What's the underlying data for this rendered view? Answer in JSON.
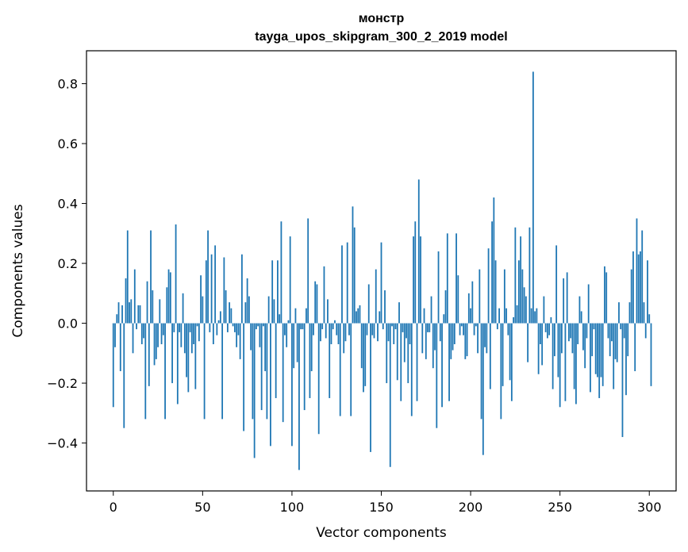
{
  "chart_data": {
    "type": "bar",
    "title": "монстр",
    "subtitle": "tayga_upos_skipgram_300_2_2019 model",
    "xlabel": "Vector components",
    "ylabel": "Components values",
    "xlim": [
      -15,
      315
    ],
    "ylim": [
      -0.56,
      0.91
    ],
    "xticks": [
      0,
      50,
      100,
      150,
      200,
      250,
      300
    ],
    "xtick_labels": [
      "0",
      "50",
      "100",
      "150",
      "200",
      "250",
      "300"
    ],
    "yticks": [
      -0.4,
      -0.2,
      0.0,
      0.2,
      0.4,
      0.6,
      0.8
    ],
    "ytick_labels": [
      "−0.4",
      "−0.2",
      "0.0",
      "0.2",
      "0.4",
      "0.6",
      "0.8"
    ],
    "bar_color": "#1f77b4",
    "grid": false,
    "values": [
      -0.28,
      -0.08,
      0.03,
      0.07,
      -0.16,
      0.06,
      -0.35,
      0.15,
      0.31,
      0.07,
      0.08,
      -0.1,
      0.18,
      -0.02,
      0.06,
      0.06,
      -0.07,
      -0.05,
      -0.32,
      0.14,
      -0.21,
      0.31,
      0.11,
      -0.14,
      -0.12,
      -0.08,
      0.08,
      -0.07,
      -0.04,
      -0.32,
      0.12,
      0.18,
      0.17,
      -0.2,
      -0.03,
      0.33,
      -0.27,
      -0.03,
      -0.08,
      0.1,
      -0.1,
      -0.18,
      -0.23,
      -0.03,
      -0.1,
      -0.07,
      -0.22,
      -0.01,
      -0.06,
      0.16,
      0.09,
      -0.32,
      0.21,
      0.31,
      -0.03,
      0.23,
      -0.07,
      0.26,
      -0.04,
      0.01,
      0.04,
      -0.32,
      0.22,
      0.11,
      -0.03,
      0.07,
      0.05,
      -0.01,
      -0.03,
      -0.08,
      -0.04,
      -0.12,
      0.23,
      -0.36,
      0.07,
      0.15,
      0.09,
      -0.09,
      -0.32,
      -0.45,
      -0.02,
      -0.01,
      -0.08,
      -0.29,
      -0.01,
      -0.16,
      -0.32,
      0.09,
      -0.41,
      0.21,
      0.08,
      -0.25,
      0.21,
      0.03,
      0.34,
      -0.33,
      -0.04,
      -0.08,
      0.01,
      0.29,
      -0.41,
      -0.15,
      0.05,
      -0.13,
      -0.49,
      -0.02,
      -0.02,
      -0.29,
      0.05,
      0.35,
      -0.25,
      -0.16,
      -0.04,
      0.14,
      0.13,
      -0.37,
      -0.06,
      -0.02,
      0.19,
      -0.05,
      0.08,
      -0.25,
      -0.07,
      -0.02,
      0.01,
      -0.04,
      -0.07,
      -0.31,
      0.26,
      -0.1,
      -0.06,
      0.27,
      -0.04,
      -0.31,
      0.39,
      0.32,
      0.04,
      0.05,
      0.06,
      -0.15,
      -0.23,
      -0.21,
      -0.04,
      0.13,
      -0.43,
      -0.04,
      -0.05,
      0.18,
      -0.06,
      0.04,
      0.27,
      -0.02,
      0.11,
      -0.2,
      -0.06,
      -0.48,
      -0.01,
      -0.07,
      -0.02,
      -0.19,
      0.07,
      -0.26,
      -0.03,
      -0.13,
      -0.05,
      -0.2,
      -0.07,
      -0.31,
      0.29,
      0.34,
      -0.26,
      0.48,
      0.29,
      -0.1,
      0.05,
      -0.12,
      -0.03,
      -0.03,
      0.09,
      -0.15,
      -0.09,
      -0.35,
      0.24,
      -0.06,
      -0.28,
      0.03,
      0.11,
      0.3,
      -0.26,
      -0.12,
      -0.09,
      -0.07,
      0.3,
      0.16,
      -0.04,
      -0.01,
      -0.04,
      -0.12,
      -0.11,
      0.1,
      0.05,
      0.14,
      -0.04,
      -0.01,
      -0.1,
      0.18,
      -0.32,
      -0.44,
      -0.08,
      -0.1,
      0.25,
      -0.22,
      0.34,
      0.42,
      0.21,
      -0.02,
      0.05,
      -0.32,
      -0.21,
      0.18,
      0.05,
      -0.04,
      -0.19,
      -0.26,
      0.02,
      0.32,
      0.06,
      0.21,
      0.29,
      0.18,
      0.12,
      0.09,
      -0.13,
      0.32,
      0.05,
      0.84,
      0.04,
      0.05,
      -0.17,
      -0.07,
      -0.14,
      0.09,
      -0.03,
      -0.05,
      -0.04,
      0.02,
      -0.22,
      -0.11,
      0.26,
      -0.18,
      -0.28,
      -0.1,
      0.15,
      -0.26,
      0.17,
      -0.06,
      -0.05,
      -0.1,
      -0.22,
      -0.27,
      -0.07,
      0.09,
      0.04,
      -0.09,
      -0.15,
      -0.05,
      0.13,
      -0.23,
      -0.11,
      -0.02,
      -0.17,
      -0.18,
      -0.25,
      -0.18,
      -0.21,
      0.19,
      0.17,
      -0.05,
      -0.11,
      -0.06,
      -0.22,
      -0.12,
      -0.13,
      0.07,
      -0.02,
      -0.38,
      -0.05,
      -0.24,
      -0.11,
      0.07,
      0.18,
      0.24,
      -0.16,
      0.35,
      0.23,
      0.24,
      0.31,
      0.07,
      -0.05,
      0.21,
      0.03,
      -0.21
    ]
  }
}
